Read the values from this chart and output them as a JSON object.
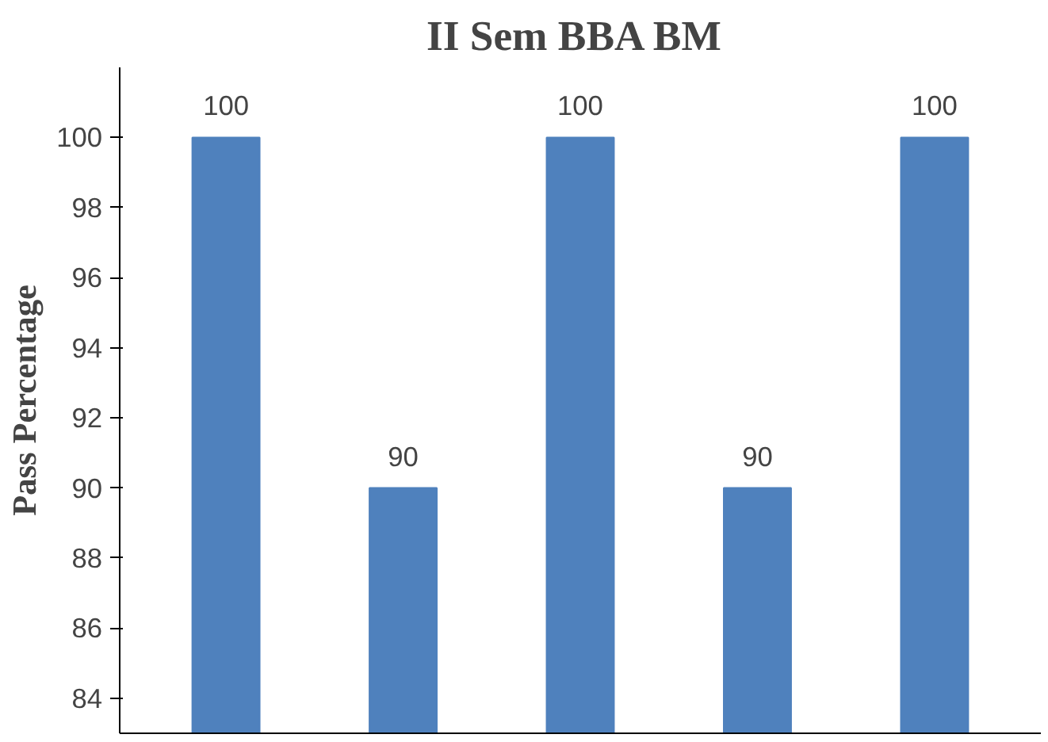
{
  "chart_data": {
    "type": "bar",
    "title": "II Sem BBA  BM",
    "ylabel": "Pass Percentage",
    "categories": [
      null,
      null,
      null,
      null,
      null
    ],
    "values": [
      100,
      90,
      100,
      90,
      100
    ],
    "color": "#4f81bd",
    "ylim": [
      83,
      102
    ],
    "yticks": [
      84,
      86,
      88,
      90,
      92,
      94,
      96,
      98,
      100
    ],
    "data_labels": true,
    "grid": false
  }
}
